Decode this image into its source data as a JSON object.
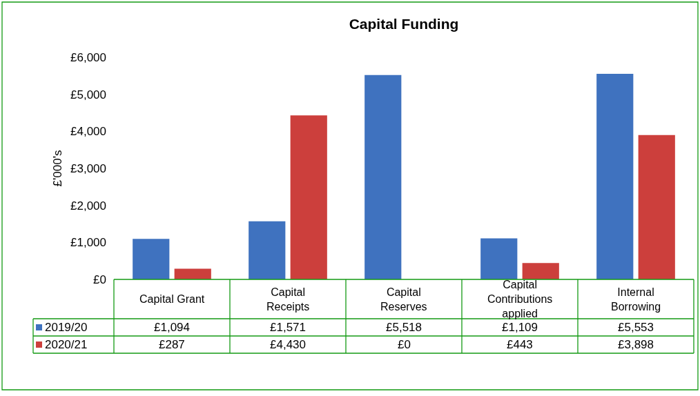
{
  "chart_data": {
    "type": "bar",
    "title": "Capital Funding",
    "ylabel": "£'000's",
    "categories": [
      "Capital Grant",
      "Capital Receipts",
      "Capital Reserves",
      "Capital Contributions applied",
      "Internal Borrowing"
    ],
    "series": [
      {
        "name": "2019/20",
        "color": "#3f72bf",
        "values": [
          1094,
          1571,
          5518,
          1109,
          5553
        ],
        "value_labels": [
          "£1,094",
          "£1,571",
          "£5,518",
          "£1,109",
          "£5,553"
        ]
      },
      {
        "name": "2020/21",
        "color": "#cc3f3c",
        "values": [
          287,
          4430,
          0,
          443,
          3898
        ],
        "value_labels": [
          "£287",
          "£4,430",
          "£0",
          "£443",
          "£3,898"
        ]
      }
    ],
    "ylim": [
      0,
      6000
    ],
    "yticks": [
      {
        "value": 0,
        "label": "£0"
      },
      {
        "value": 1000,
        "label": "£1,000"
      },
      {
        "value": 2000,
        "label": "£2,000"
      },
      {
        "value": 3000,
        "label": "£3,000"
      },
      {
        "value": 4000,
        "label": "£4,000"
      },
      {
        "value": 5000,
        "label": "£5,000"
      },
      {
        "value": 6000,
        "label": "£6,000"
      }
    ],
    "tick_labels": "y",
    "legend": "bottom left"
  }
}
